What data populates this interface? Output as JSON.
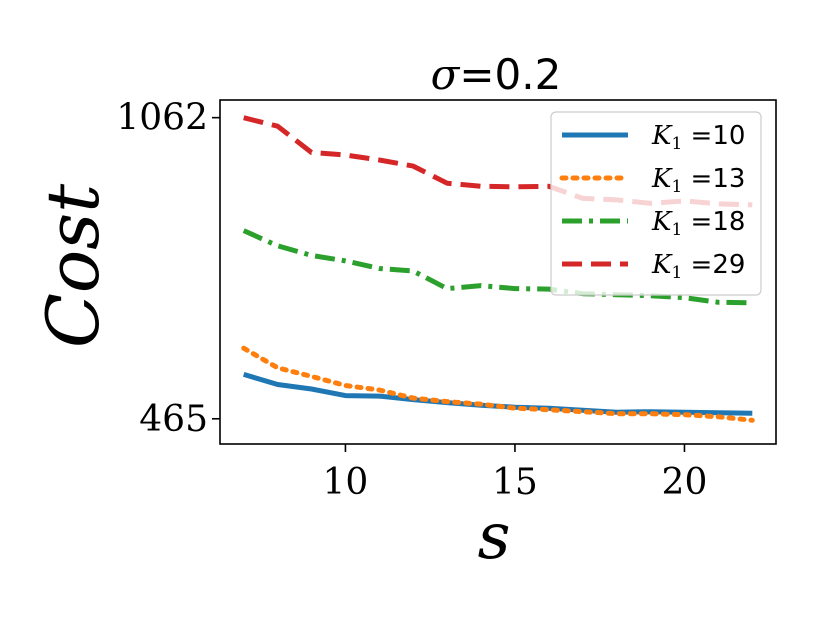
{
  "chart_data": {
    "type": "line",
    "title": {
      "symbol": "σ",
      "value": "=0.2"
    },
    "xlabel": "s",
    "ylabel": "Cost",
    "xlim": [
      6.3,
      22.7
    ],
    "ylim": [
      415,
      1097
    ],
    "xticks": [
      10,
      15,
      20
    ],
    "yticks": [
      465,
      1062
    ],
    "legend_position": "top-right",
    "grid": false,
    "x": [
      7,
      8,
      9,
      10,
      11,
      12,
      13,
      14,
      15,
      16,
      17,
      18,
      19,
      20,
      21,
      22
    ],
    "series": [
      {
        "name": {
          "sym": "K",
          "sub": "1",
          "rest": " =10"
        },
        "color": "#1f77b4",
        "style": "solid",
        "values": [
          553,
          533,
          524,
          511,
          510,
          503,
          497,
          492,
          488,
          486,
          482,
          478,
          479,
          478,
          477,
          476
        ]
      },
      {
        "name": {
          "sym": "K",
          "sub": "1",
          "rest": " =13"
        },
        "color": "#ff7f0e",
        "style": "dotted",
        "values": [
          605,
          566,
          549,
          531,
          522,
          506,
          499,
          494,
          486,
          483,
          479,
          475,
          475,
          473,
          469,
          462
        ]
      },
      {
        "name": {
          "sym": "K",
          "sub": "1",
          "rest": " =18"
        },
        "color": "#2ca02c",
        "style": "dashdot",
        "values": [
          838,
          808,
          789,
          778,
          763,
          758,
          723,
          729,
          723,
          722,
          713,
          711,
          709,
          705,
          696,
          695
        ]
      },
      {
        "name": {
          "sym": "K",
          "sub": "1",
          "rest": " =29"
        },
        "color": "#d62728",
        "style": "dashed",
        "values": [
          1062,
          1045,
          993,
          988,
          978,
          966,
          932,
          926,
          925,
          926,
          902,
          899,
          892,
          897,
          891,
          889
        ]
      }
    ]
  }
}
